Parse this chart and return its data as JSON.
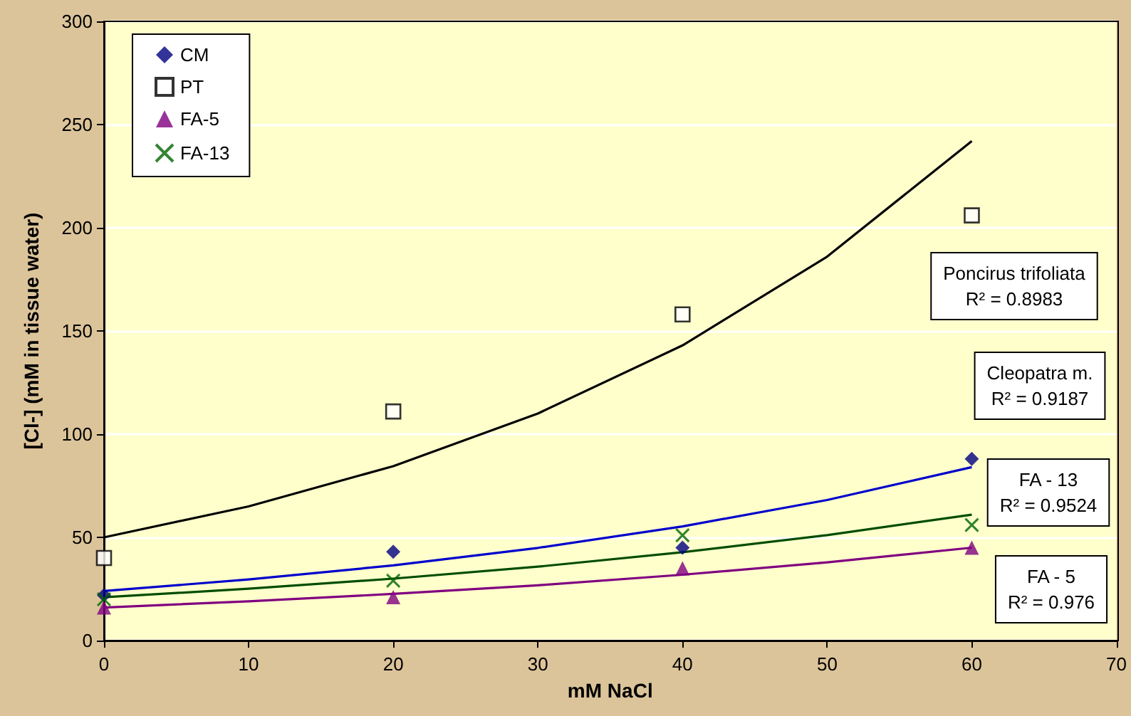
{
  "chart_data": {
    "type": "scatter",
    "xlabel": "mM NaCl",
    "ylabel": "[Cl-] (mM in tissue water)",
    "xlim": [
      0,
      70
    ],
    "xticks": [
      0,
      10,
      20,
      30,
      40,
      50,
      60,
      70
    ],
    "ylim": [
      0,
      300
    ],
    "yticks": [
      0,
      50,
      100,
      150,
      200,
      250,
      300
    ],
    "grid": "y",
    "legend": "top left",
    "x": [
      0,
      20,
      40,
      60
    ],
    "series": [
      {
        "name": "CM",
        "color": "#000080",
        "marker": "diamond",
        "values": [
          22,
          43,
          45,
          88
        ]
      },
      {
        "name": "PT",
        "color": "#ffffff",
        "marker": "square",
        "values": [
          40,
          111,
          158,
          206
        ]
      },
      {
        "name": "FA-5",
        "color": "#800080",
        "marker": "triangle",
        "values": [
          16,
          21,
          35,
          45
        ]
      },
      {
        "name": "FA-13",
        "color": "#006400",
        "marker": "cross",
        "values": [
          20,
          29,
          51,
          56
        ]
      },
      {
        "type": "line",
        "color": "#000000",
        "marker": "none",
        "x": [
          0,
          10,
          20,
          30,
          40,
          50,
          60
        ],
        "values": [
          50,
          65,
          84.5,
          110,
          143,
          186,
          242
        ]
      },
      {
        "type": "line",
        "color": "#0000cc",
        "marker": "none",
        "x": [
          0,
          10,
          20,
          30,
          40,
          50,
          60
        ],
        "values": [
          24,
          29.6,
          36.4,
          44.9,
          55.3,
          68.1,
          84
        ]
      },
      {
        "type": "line",
        "color": "#004d00",
        "marker": "none",
        "x": [
          0,
          10,
          20,
          30,
          40,
          50,
          60
        ],
        "values": [
          21,
          25.1,
          30,
          35.8,
          42.8,
          51.1,
          61
        ]
      },
      {
        "type": "line",
        "color": "#800080",
        "marker": "none",
        "x": [
          0,
          10,
          20,
          30,
          40,
          50,
          60
        ],
        "values": [
          16,
          19,
          22.6,
          26.8,
          31.9,
          37.9,
          45
        ]
      }
    ],
    "annotations": [
      "Poncirus trifoliata\nR² = 0.8983",
      "Cleopatra m.\nR² = 0.9187",
      "FA - 13\nR² = 0.9524",
      "FA - 5\nR² = 0.976"
    ]
  }
}
